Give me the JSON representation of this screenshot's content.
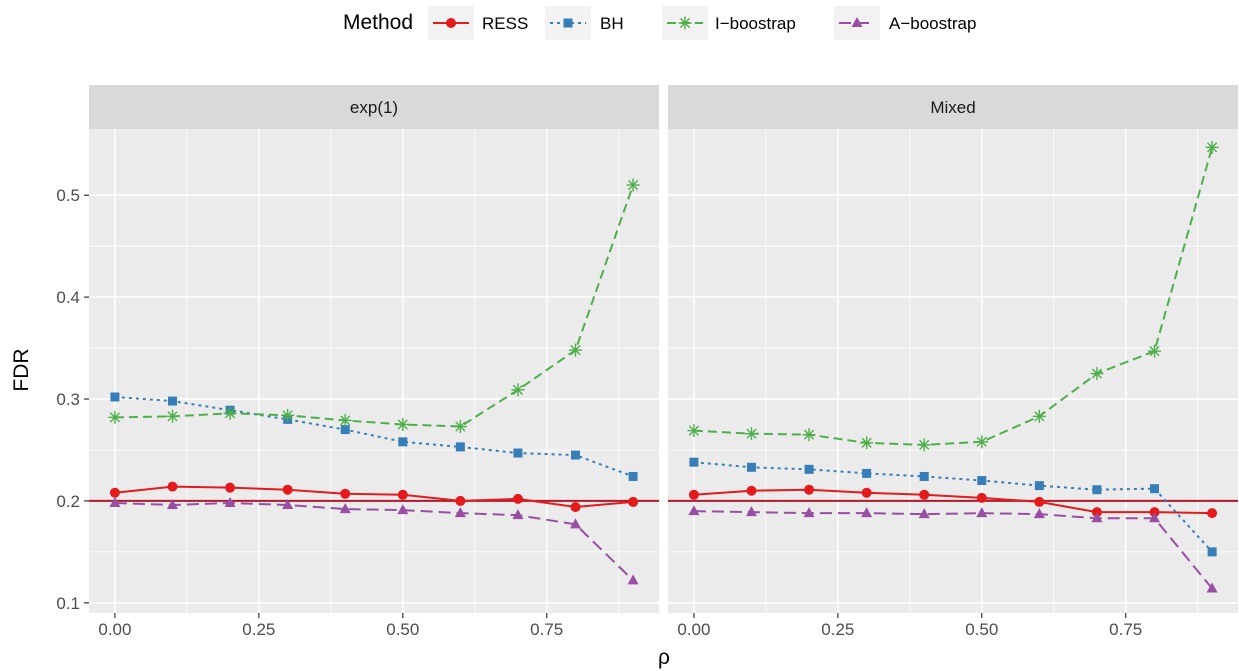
{
  "chart_data": {
    "type": "line",
    "ylabel": "FDR",
    "xlabel": "ρ",
    "ylim": [
      0.09,
      0.565
    ],
    "xlim": [
      -0.045,
      0.945
    ],
    "x_ticks": [
      0,
      0.25,
      0.5,
      0.75
    ],
    "x_tick_labels": [
      "0.00",
      "0.25",
      "0.50",
      "0.75"
    ],
    "y_ticks": [
      0.1,
      0.2,
      0.3,
      0.4,
      0.5
    ],
    "y_tick_labels": [
      "0.1",
      "0.2",
      "0.3",
      "0.4",
      "0.5"
    ],
    "reference_line": {
      "y": 0.2,
      "color": "#B2182B"
    },
    "grid": true,
    "legend": {
      "title": "Method",
      "position": "top",
      "entries": [
        "RESS",
        "BH",
        "I−boostrap",
        "A−boostrap"
      ]
    },
    "series_style": [
      {
        "color": "#E41A1C",
        "marker": "circle",
        "dash": "solid"
      },
      {
        "color": "#377EB8",
        "marker": "square",
        "dash": "dotted"
      },
      {
        "color": "#4DAF4A",
        "marker": "asterisk",
        "dash": "dashed"
      },
      {
        "color": "#984EA3",
        "marker": "triangle",
        "dash": "longdash"
      }
    ],
    "panels": [
      {
        "title": "exp(1)",
        "x": [
          0,
          0.1,
          0.2,
          0.3,
          0.4,
          0.5,
          0.6,
          0.7,
          0.8,
          0.9
        ],
        "series": [
          {
            "name": "RESS",
            "values": [
              0.208,
              0.214,
              0.213,
              0.211,
              0.207,
              0.206,
              0.2,
              0.202,
              0.194,
              0.199
            ]
          },
          {
            "name": "BH",
            "values": [
              0.302,
              0.298,
              0.289,
              0.28,
              0.27,
              0.258,
              0.253,
              0.247,
              0.245,
              0.224
            ]
          },
          {
            "name": "I−boostrap",
            "values": [
              0.282,
              0.283,
              0.286,
              0.284,
              0.279,
              0.275,
              0.273,
              0.309,
              0.348,
              0.51
            ]
          },
          {
            "name": "A−boostrap",
            "values": [
              0.198,
              0.196,
              0.198,
              0.196,
              0.192,
              0.191,
              0.188,
              0.186,
              0.177,
              0.122
            ]
          }
        ]
      },
      {
        "title": "Mixed",
        "x": [
          0,
          0.1,
          0.2,
          0.3,
          0.4,
          0.5,
          0.6,
          0.7,
          0.8,
          0.9
        ],
        "series": [
          {
            "name": "RESS",
            "values": [
              0.206,
              0.21,
              0.211,
              0.208,
              0.206,
              0.203,
              0.199,
              0.189,
              0.189,
              0.188
            ]
          },
          {
            "name": "BH",
            "values": [
              0.238,
              0.233,
              0.231,
              0.227,
              0.224,
              0.22,
              0.215,
              0.211,
              0.212,
              0.15
            ]
          },
          {
            "name": "I−boostrap",
            "values": [
              0.269,
              0.266,
              0.265,
              0.257,
              0.255,
              0.258,
              0.283,
              0.325,
              0.347,
              0.547
            ]
          },
          {
            "name": "A−boostrap",
            "values": [
              0.19,
              0.189,
              0.188,
              0.188,
              0.187,
              0.188,
              0.187,
              0.183,
              0.183,
              0.114
            ]
          }
        ]
      }
    ]
  }
}
